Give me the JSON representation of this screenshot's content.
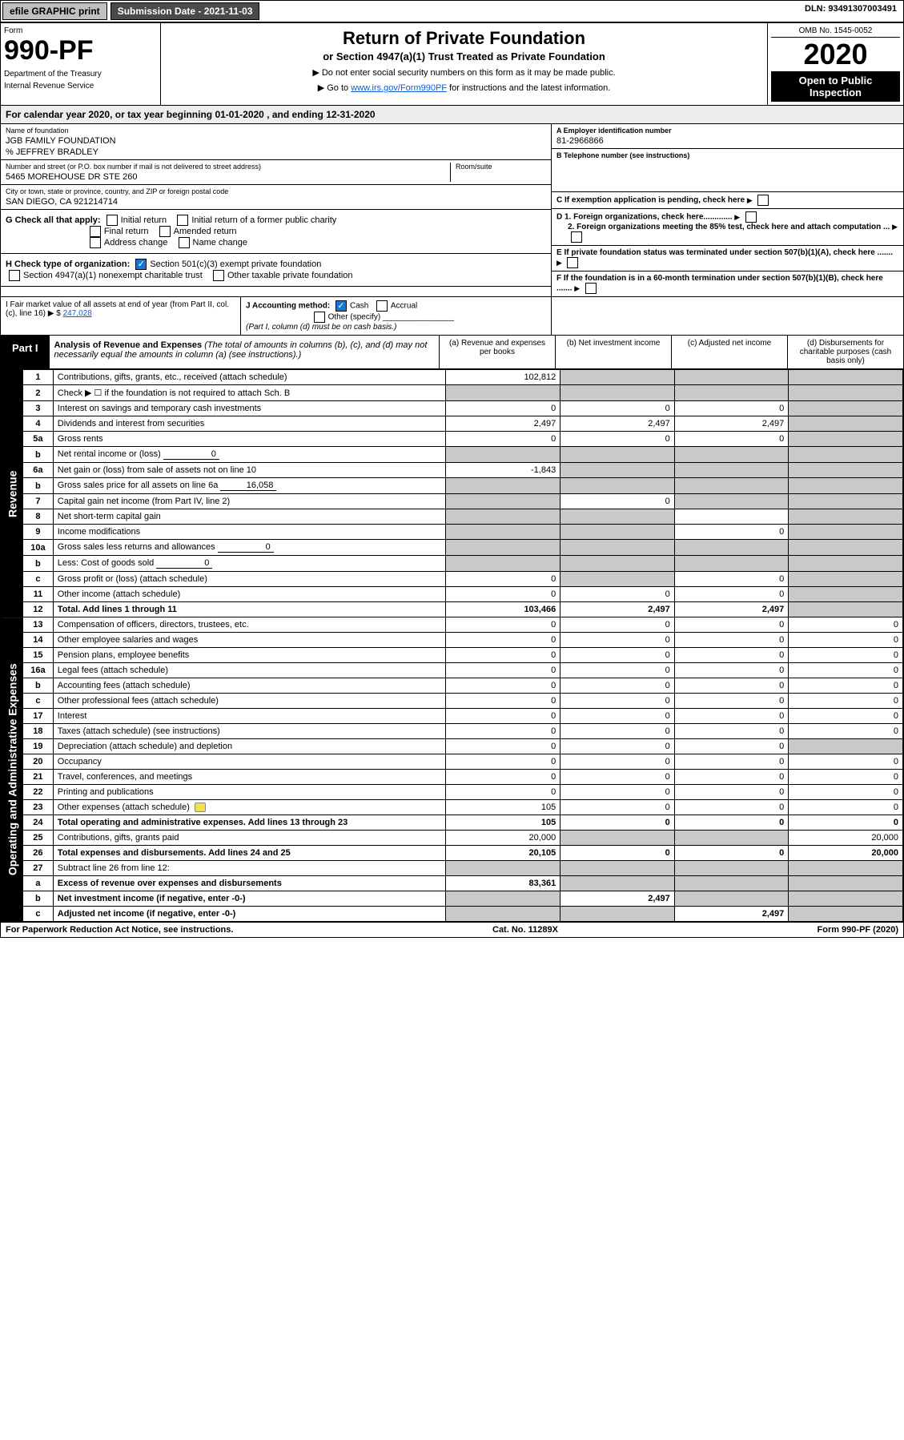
{
  "topbar": {
    "efile": "efile GRAPHIC print",
    "submission": "Submission Date - 2021-11-03",
    "dln": "DLN: 93491307003491"
  },
  "header": {
    "form_label": "Form",
    "form_number": "990-PF",
    "dept1": "Department of the Treasury",
    "dept2": "Internal Revenue Service",
    "title": "Return of Private Foundation",
    "subtitle": "or Section 4947(a)(1) Trust Treated as Private Foundation",
    "note1": "▶ Do not enter social security numbers on this form as it may be made public.",
    "note2_pre": "▶ Go to ",
    "note2_link": "www.irs.gov/Form990PF",
    "note2_post": " for instructions and the latest information.",
    "omb": "OMB No. 1545-0052",
    "year": "2020",
    "open": "Open to Public Inspection"
  },
  "calendar": {
    "text_pre": "For calendar year 2020, or tax year beginning ",
    "begin": "01-01-2020",
    "text_mid": " , and ending ",
    "end": "12-31-2020"
  },
  "foundation": {
    "name_label": "Name of foundation",
    "name": "JGB FAMILY FOUNDATION",
    "care_of": "% JEFFREY BRADLEY",
    "addr_label": "Number and street (or P.O. box number if mail is not delivered to street address)",
    "addr": "5465 MOREHOUSE DR STE 260",
    "room_label": "Room/suite",
    "city_label": "City or town, state or province, country, and ZIP or foreign postal code",
    "city": "SAN DIEGO, CA  921214714",
    "ein_label": "A Employer identification number",
    "ein": "81-2966866",
    "phone_label": "B Telephone number (see instructions)",
    "c_label": "C If exemption application is pending, check here",
    "d1_label": "D 1. Foreign organizations, check here.............",
    "d2_label": "2. Foreign organizations meeting the 85% test, check here and attach computation ...",
    "e_label": "E  If private foundation status was terminated under section 507(b)(1)(A), check here .......",
    "f_label": "F  If the foundation is in a 60-month termination under section 507(b)(1)(B), check here .......",
    "g_label": "G Check all that apply:",
    "g_opts": [
      "Initial return",
      "Initial return of a former public charity",
      "Final return",
      "Amended return",
      "Address change",
      "Name change"
    ],
    "h_label": "H Check type of organization:",
    "h_opt1": "Section 501(c)(3) exempt private foundation",
    "h_opt2": "Section 4947(a)(1) nonexempt charitable trust",
    "h_opt3": "Other taxable private foundation",
    "i_label": "I Fair market value of all assets at end of year (from Part II, col. (c), line 16) ▶ $",
    "i_value": "247,028",
    "j_label": "J Accounting method:",
    "j_cash": "Cash",
    "j_accrual": "Accrual",
    "j_other": "Other (specify)",
    "j_note": "(Part I, column (d) must be on cash basis.)"
  },
  "part1": {
    "badge": "Part I",
    "title": "Analysis of Revenue and Expenses",
    "title_note": " (The total of amounts in columns (b), (c), and (d) may not necessarily equal the amounts in column (a) (see instructions).)",
    "col_a": "(a) Revenue and expenses per books",
    "col_b": "(b) Net investment income",
    "col_c": "(c) Adjusted net income",
    "col_d": "(d) Disbursements for charitable purposes (cash basis only)"
  },
  "side_labels": {
    "revenue": "Revenue",
    "expenses": "Operating and Administrative Expenses"
  },
  "rows": [
    {
      "n": "1",
      "desc": "Contributions, gifts, grants, etc., received (attach schedule)",
      "a": "102,812",
      "b": "",
      "c": "",
      "d": "",
      "shade_b": true,
      "shade_c": true,
      "shade_d": true
    },
    {
      "n": "2",
      "desc": "Check ▶ ☐ if the foundation is not required to attach Sch. B",
      "a": "",
      "b": "",
      "c": "",
      "d": "",
      "shade": true
    },
    {
      "n": "3",
      "desc": "Interest on savings and temporary cash investments",
      "a": "0",
      "b": "0",
      "c": "0",
      "d": "",
      "shade_d": true
    },
    {
      "n": "4",
      "desc": "Dividends and interest from securities",
      "a": "2,497",
      "b": "2,497",
      "c": "2,497",
      "d": "",
      "shade_d": true
    },
    {
      "n": "5a",
      "desc": "Gross rents",
      "a": "0",
      "b": "0",
      "c": "0",
      "d": "",
      "shade_d": true
    },
    {
      "n": "b",
      "desc": "Net rental income or (loss)",
      "inline": "0",
      "shade": true
    },
    {
      "n": "6a",
      "desc": "Net gain or (loss) from sale of assets not on line 10",
      "a": "-1,843",
      "b": "",
      "c": "",
      "d": "",
      "shade_b": true,
      "shade_c": true,
      "shade_d": true
    },
    {
      "n": "b",
      "desc": "Gross sales price for all assets on line 6a",
      "inline": "16,058",
      "shade": true
    },
    {
      "n": "7",
      "desc": "Capital gain net income (from Part IV, line 2)",
      "a": "",
      "b": "0",
      "c": "",
      "d": "",
      "shade_a": true,
      "shade_c": true,
      "shade_d": true
    },
    {
      "n": "8",
      "desc": "Net short-term capital gain",
      "a": "",
      "b": "",
      "c": "",
      "d": "",
      "shade_a": true,
      "shade_b": true,
      "shade_d": true
    },
    {
      "n": "9",
      "desc": "Income modifications",
      "a": "",
      "b": "",
      "c": "0",
      "d": "",
      "shade_a": true,
      "shade_b": true,
      "shade_d": true
    },
    {
      "n": "10a",
      "desc": "Gross sales less returns and allowances",
      "inline": "0",
      "shade": true
    },
    {
      "n": "b",
      "desc": "Less: Cost of goods sold",
      "inline": "0",
      "shade": true
    },
    {
      "n": "c",
      "desc": "Gross profit or (loss) (attach schedule)",
      "a": "0",
      "b": "",
      "c": "0",
      "d": "",
      "shade_b": true,
      "shade_d": true
    },
    {
      "n": "11",
      "desc": "Other income (attach schedule)",
      "a": "0",
      "b": "0",
      "c": "0",
      "d": "",
      "shade_d": true
    },
    {
      "n": "12",
      "desc": "Total. Add lines 1 through 11",
      "a": "103,466",
      "b": "2,497",
      "c": "2,497",
      "d": "",
      "bold": true,
      "shade_d": true
    },
    {
      "n": "13",
      "desc": "Compensation of officers, directors, trustees, etc.",
      "a": "0",
      "b": "0",
      "c": "0",
      "d": "0"
    },
    {
      "n": "14",
      "desc": "Other employee salaries and wages",
      "a": "0",
      "b": "0",
      "c": "0",
      "d": "0"
    },
    {
      "n": "15",
      "desc": "Pension plans, employee benefits",
      "a": "0",
      "b": "0",
      "c": "0",
      "d": "0"
    },
    {
      "n": "16a",
      "desc": "Legal fees (attach schedule)",
      "a": "0",
      "b": "0",
      "c": "0",
      "d": "0"
    },
    {
      "n": "b",
      "desc": "Accounting fees (attach schedule)",
      "a": "0",
      "b": "0",
      "c": "0",
      "d": "0"
    },
    {
      "n": "c",
      "desc": "Other professional fees (attach schedule)",
      "a": "0",
      "b": "0",
      "c": "0",
      "d": "0"
    },
    {
      "n": "17",
      "desc": "Interest",
      "a": "0",
      "b": "0",
      "c": "0",
      "d": "0"
    },
    {
      "n": "18",
      "desc": "Taxes (attach schedule) (see instructions)",
      "a": "0",
      "b": "0",
      "c": "0",
      "d": "0"
    },
    {
      "n": "19",
      "desc": "Depreciation (attach schedule) and depletion",
      "a": "0",
      "b": "0",
      "c": "0",
      "d": "",
      "shade_d": true
    },
    {
      "n": "20",
      "desc": "Occupancy",
      "a": "0",
      "b": "0",
      "c": "0",
      "d": "0"
    },
    {
      "n": "21",
      "desc": "Travel, conferences, and meetings",
      "a": "0",
      "b": "0",
      "c": "0",
      "d": "0"
    },
    {
      "n": "22",
      "desc": "Printing and publications",
      "a": "0",
      "b": "0",
      "c": "0",
      "d": "0"
    },
    {
      "n": "23",
      "desc": "Other expenses (attach schedule)",
      "a": "105",
      "b": "0",
      "c": "0",
      "d": "0",
      "icon": true
    },
    {
      "n": "24",
      "desc": "Total operating and administrative expenses. Add lines 13 through 23",
      "a": "105",
      "b": "0",
      "c": "0",
      "d": "0",
      "bold": true
    },
    {
      "n": "25",
      "desc": "Contributions, gifts, grants paid",
      "a": "20,000",
      "b": "",
      "c": "",
      "d": "20,000",
      "shade_b": true,
      "shade_c": true
    },
    {
      "n": "26",
      "desc": "Total expenses and disbursements. Add lines 24 and 25",
      "a": "20,105",
      "b": "0",
      "c": "0",
      "d": "20,000",
      "bold": true
    },
    {
      "n": "27",
      "desc": "Subtract line 26 from line 12:",
      "a": "",
      "b": "",
      "c": "",
      "d": "",
      "shade": true
    },
    {
      "n": "a",
      "desc": "Excess of revenue over expenses and disbursements",
      "a": "83,361",
      "b": "",
      "c": "",
      "d": "",
      "bold": true,
      "shade_b": true,
      "shade_c": true,
      "shade_d": true
    },
    {
      "n": "b",
      "desc": "Net investment income (if negative, enter -0-)",
      "a": "",
      "b": "2,497",
      "c": "",
      "d": "",
      "bold": true,
      "shade_a": true,
      "shade_c": true,
      "shade_d": true
    },
    {
      "n": "c",
      "desc": "Adjusted net income (if negative, enter -0-)",
      "a": "",
      "b": "",
      "c": "2,497",
      "d": "",
      "bold": true,
      "shade_a": true,
      "shade_b": true,
      "shade_d": true
    }
  ],
  "footer": {
    "left": "For Paperwork Reduction Act Notice, see instructions.",
    "mid": "Cat. No. 11289X",
    "right": "Form 990-PF (2020)"
  }
}
